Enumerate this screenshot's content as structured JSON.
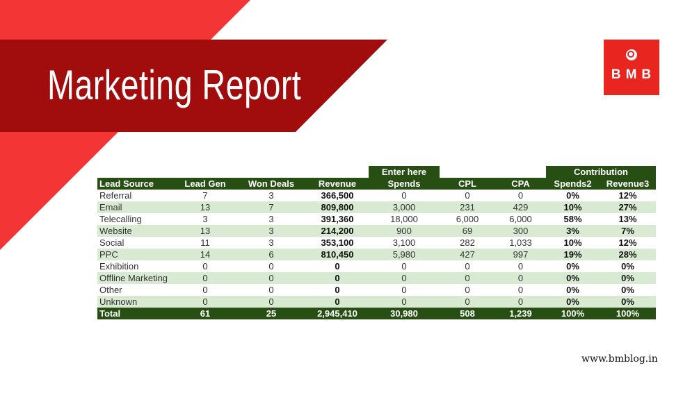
{
  "header": {
    "title": "Marketing Report",
    "logo": "BMB"
  },
  "table": {
    "group_headers": [
      "Enter here",
      "Contribution"
    ],
    "columns": [
      "Lead Source",
      "Lead Gen",
      "Won Deals",
      "Revenue",
      "Spends",
      "CPL",
      "CPA",
      "Spends2",
      "Revenue3"
    ],
    "rows": [
      [
        "Referral",
        "7",
        "3",
        "366,500",
        "0",
        "0",
        "0",
        "0%",
        "12%"
      ],
      [
        "Email",
        "13",
        "7",
        "809,800",
        "3,000",
        "231",
        "429",
        "10%",
        "27%"
      ],
      [
        "Telecalling",
        "3",
        "3",
        "391,360",
        "18,000",
        "6,000",
        "6,000",
        "58%",
        "13%"
      ],
      [
        "Website",
        "13",
        "3",
        "214,200",
        "900",
        "69",
        "300",
        "3%",
        "7%"
      ],
      [
        "Social",
        "11",
        "3",
        "353,100",
        "3,100",
        "282",
        "1,033",
        "10%",
        "12%"
      ],
      [
        "PPC",
        "14",
        "6",
        "810,450",
        "5,980",
        "427",
        "997",
        "19%",
        "28%"
      ],
      [
        "Exhibition",
        "0",
        "0",
        "0",
        "0",
        "0",
        "0",
        "0%",
        "0%"
      ],
      [
        "Offline Marketing",
        "0",
        "0",
        "0",
        "0",
        "0",
        "0",
        "0%",
        "0%"
      ],
      [
        "Other",
        "0",
        "0",
        "0",
        "0",
        "0",
        "0",
        "0%",
        "0%"
      ],
      [
        "Unknown",
        "0",
        "0",
        "0",
        "0",
        "0",
        "0",
        "0%",
        "0%"
      ]
    ],
    "total": [
      "Total",
      "61",
      "25",
      "2,945,410",
      "30,980",
      "508",
      "1,239",
      "100%",
      "100%"
    ]
  },
  "footer": {
    "website": "www.bmblog.in"
  }
}
